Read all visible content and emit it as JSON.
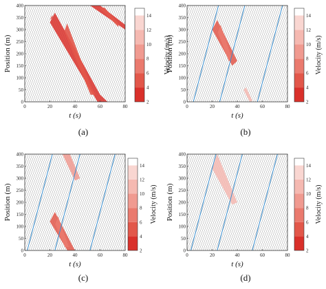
{
  "figure": {
    "colorbar": {
      "ticks": [
        "14",
        "12",
        "10",
        "8",
        "6",
        "4",
        "2"
      ],
      "label": "Velocity (m/s)",
      "levels": [
        {
          "from": 2,
          "to": 4,
          "color": "#d9302a"
        },
        {
          "from": 4,
          "to": 6,
          "color": "#e2574a"
        },
        {
          "from": 6,
          "to": 8,
          "color": "#ea7a6e"
        },
        {
          "from": 8,
          "to": 10,
          "color": "#f09a90"
        },
        {
          "from": 10,
          "to": 12,
          "color": "#f5b9b1"
        },
        {
          "from": 12,
          "to": 14,
          "color": "#f9d6d1"
        },
        {
          "from": 14,
          "to": 15,
          "color": "#ffffff"
        }
      ]
    },
    "trajectory_color": "#9a9a9a",
    "cav_color": "#3a8fd0"
  },
  "chart_data": [
    {
      "panel": "(a)",
      "type": "heatmap",
      "xlabel": "t (s)",
      "ylabel": "Position (m)",
      "xlim": [
        0,
        80
      ],
      "ylim": [
        0,
        400
      ],
      "xticks": [
        "0",
        "20",
        "40",
        "60",
        "80"
      ],
      "yticks": [
        "0",
        "50",
        "100",
        "150",
        "200",
        "250",
        "300",
        "350",
        "400"
      ],
      "cav_lines": [],
      "congestion_regions": [
        {
          "polygon": [
            [
              20,
              330
            ],
            [
              24,
              370
            ],
            [
              60,
              30
            ],
            [
              66,
              0
            ],
            [
              58,
              0
            ]
          ],
          "min_speed": 2
        },
        {
          "polygon": [
            [
              52,
              400
            ],
            [
              60,
              400
            ],
            [
              80,
              320
            ],
            [
              80,
              300
            ]
          ],
          "min_speed": 2
        },
        {
          "polygon": [
            [
              20,
              340
            ],
            [
              22,
              360
            ],
            [
              22,
              350
            ]
          ],
          "min_speed": 2
        }
      ]
    },
    {
      "panel": "(b)",
      "type": "heatmap",
      "xlabel": "t (s)",
      "ylabel": "Position (m)",
      "xlim": [
        0,
        80
      ],
      "ylim": [
        0,
        400
      ],
      "xticks": [
        "0",
        "20",
        "40",
        "60",
        "80"
      ],
      "yticks": [
        "0",
        "50",
        "100",
        "150",
        "200",
        "250",
        "300",
        "350",
        "400"
      ],
      "cav_lines": [
        [
          [
            5,
            0
          ],
          [
            25,
            400
          ]
        ],
        [
          [
            26,
            0
          ],
          [
            46,
            400
          ]
        ],
        [
          [
            56,
            0
          ],
          [
            76,
            400
          ]
        ]
      ],
      "congestion_regions": [
        {
          "polygon": [
            [
              20,
              300
            ],
            [
              24,
              340
            ],
            [
              40,
              170
            ],
            [
              36,
              150
            ]
          ],
          "min_speed": 4
        },
        {
          "polygon": [
            [
              45,
              50
            ],
            [
              47,
              60
            ],
            [
              52,
              5
            ],
            [
              50,
              0
            ]
          ],
          "min_speed": 10
        }
      ]
    },
    {
      "panel": "(c)",
      "type": "heatmap",
      "xlabel": "t (s)",
      "ylabel": "Position (m)",
      "xlim": [
        0,
        80
      ],
      "ylim": [
        0,
        400
      ],
      "xticks": [
        "0",
        "20",
        "40",
        "60",
        "80"
      ],
      "yticks": [
        "0",
        "50",
        "100",
        "150",
        "200",
        "250",
        "300",
        "350",
        "400"
      ],
      "cav_lines": [
        [
          [
            2,
            0
          ],
          [
            22,
            400
          ]
        ],
        [
          [
            24,
            0
          ],
          [
            44,
            400
          ]
        ],
        [
          [
            52,
            0
          ],
          [
            72,
            400
          ]
        ]
      ],
      "congestion_regions": [
        {
          "polygon": [
            [
              30,
              400
            ],
            [
              36,
              400
            ],
            [
              44,
              300
            ],
            [
              40,
              290
            ]
          ],
          "min_speed": 8
        },
        {
          "polygon": [
            [
              20,
              120
            ],
            [
              24,
              160
            ],
            [
              40,
              0
            ],
            [
              34,
              0
            ]
          ],
          "min_speed": 4
        }
      ]
    },
    {
      "panel": "(d)",
      "type": "heatmap",
      "xlabel": "t (s)",
      "ylabel": "Position (m)",
      "xlim": [
        0,
        80
      ],
      "ylim": [
        0,
        400
      ],
      "xticks": [
        "0",
        "20",
        "40",
        "60",
        "80"
      ],
      "yticks": [
        "0",
        "50",
        "100",
        "150",
        "200",
        "250",
        "300",
        "350",
        "400"
      ],
      "cav_lines": [
        [
          [
            3,
            0
          ],
          [
            23,
            400
          ]
        ],
        [
          [
            24,
            0
          ],
          [
            44,
            400
          ]
        ],
        [
          [
            52,
            0
          ],
          [
            72,
            400
          ]
        ]
      ],
      "congestion_regions": [
        {
          "polygon": [
            [
              20,
              340
            ],
            [
              24,
              400
            ],
            [
              40,
              200
            ],
            [
              36,
              190
            ]
          ],
          "min_speed": 10
        }
      ]
    }
  ]
}
